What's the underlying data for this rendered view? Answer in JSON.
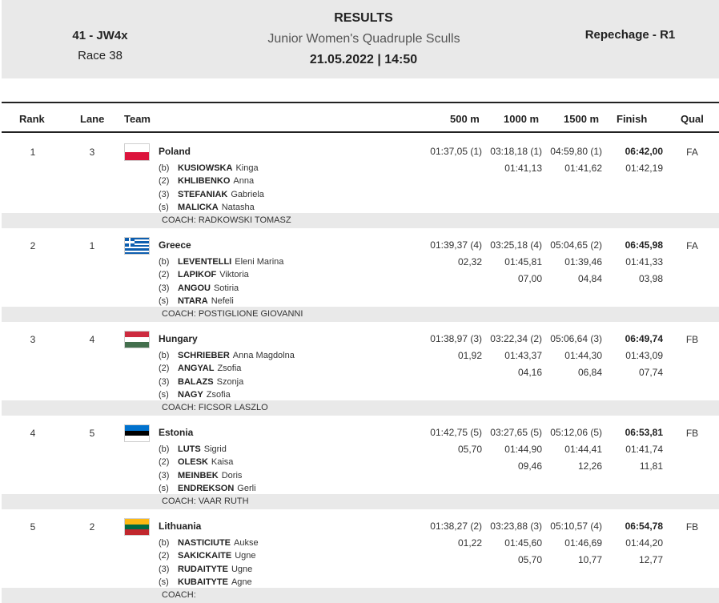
{
  "header": {
    "event_code": "41 - JW4x",
    "race": "Race 38",
    "results_label": "RESULTS",
    "boat_class": "Junior Women's Quadruple Sculls",
    "date_time": "21.05.2022 | 14:50",
    "round": "Repechage - R1"
  },
  "columns": {
    "rank": "Rank",
    "lane": "Lane",
    "team": "Team",
    "m500": "500 m",
    "m1000": "1000 m",
    "m1500": "1500 m",
    "finish": "Finish",
    "qual": "Qual"
  },
  "colors": {
    "header_bg": "#e9e9e9",
    "coach_band_bg": "#e9e9e9",
    "row_divider": "#9a9a9a"
  },
  "results": [
    {
      "rank": "1",
      "lane": "3",
      "country": "Poland",
      "flag": "poland-flag-icon",
      "crew": [
        {
          "seat": "(b)",
          "surname": "KUSIOWSKA",
          "first": "Kinga"
        },
        {
          "seat": "(2)",
          "surname": "KHLIBENKO",
          "first": "Anna"
        },
        {
          "seat": "(3)",
          "surname": "STEFANIAK",
          "first": "Gabriela"
        },
        {
          "seat": "(s)",
          "surname": "MALICKA",
          "first": "Natasha"
        }
      ],
      "coach": "COACH: RADKOWSKI TOMASZ",
      "m500": [
        "01:37,05 (1)",
        "",
        ""
      ],
      "m1000": [
        "03:18,18 (1)",
        "01:41,13",
        ""
      ],
      "m1500": [
        "04:59,80 (1)",
        "01:41,62",
        ""
      ],
      "finish": [
        "06:42,00",
        "01:42,19",
        ""
      ],
      "qual": "FA"
    },
    {
      "rank": "2",
      "lane": "1",
      "country": "Greece",
      "flag": "greece-flag-icon",
      "crew": [
        {
          "seat": "(b)",
          "surname": "LEVENTELLI",
          "first": "Eleni Marina"
        },
        {
          "seat": "(2)",
          "surname": "LAPIKOF",
          "first": "Viktoria"
        },
        {
          "seat": "(3)",
          "surname": "ANGOU",
          "first": "Sotiria"
        },
        {
          "seat": "(s)",
          "surname": "NTARA",
          "first": "Nefeli"
        }
      ],
      "coach": "COACH: POSTIGLIONE GIOVANNI",
      "m500": [
        "01:39,37 (4)",
        "02,32",
        ""
      ],
      "m1000": [
        "03:25,18 (4)",
        "01:45,81",
        "07,00"
      ],
      "m1500": [
        "05:04,65 (2)",
        "01:39,46",
        "04,84"
      ],
      "finish": [
        "06:45,98",
        "01:41,33",
        "03,98"
      ],
      "qual": "FA"
    },
    {
      "rank": "3",
      "lane": "4",
      "country": "Hungary",
      "flag": "hungary-flag-icon",
      "crew": [
        {
          "seat": "(b)",
          "surname": "SCHRIEBER",
          "first": "Anna Magdolna"
        },
        {
          "seat": "(2)",
          "surname": "ANGYAL",
          "first": "Zsofia"
        },
        {
          "seat": "(3)",
          "surname": "BALAZS",
          "first": "Szonja"
        },
        {
          "seat": "(s)",
          "surname": "NAGY",
          "first": "Zsofia"
        }
      ],
      "coach": "COACH: FICSOR LASZLO",
      "m500": [
        "01:38,97 (3)",
        "01,92",
        ""
      ],
      "m1000": [
        "03:22,34 (2)",
        "01:43,37",
        "04,16"
      ],
      "m1500": [
        "05:06,64 (3)",
        "01:44,30",
        "06,84"
      ],
      "finish": [
        "06:49,74",
        "01:43,09",
        "07,74"
      ],
      "qual": "FB"
    },
    {
      "rank": "4",
      "lane": "5",
      "country": "Estonia",
      "flag": "estonia-flag-icon",
      "crew": [
        {
          "seat": "(b)",
          "surname": "LUTS",
          "first": "Sigrid"
        },
        {
          "seat": "(2)",
          "surname": "OLESK",
          "first": "Kaisa"
        },
        {
          "seat": "(3)",
          "surname": "MEINBEK",
          "first": "Doris"
        },
        {
          "seat": "(s)",
          "surname": "ENDREKSON",
          "first": "Gerli"
        }
      ],
      "coach": "COACH: VAAR RUTH",
      "m500": [
        "01:42,75 (5)",
        "05,70",
        ""
      ],
      "m1000": [
        "03:27,65 (5)",
        "01:44,90",
        "09,46"
      ],
      "m1500": [
        "05:12,06 (5)",
        "01:44,41",
        "12,26"
      ],
      "finish": [
        "06:53,81",
        "01:41,74",
        "11,81"
      ],
      "qual": "FB"
    },
    {
      "rank": "5",
      "lane": "2",
      "country": "Lithuania",
      "flag": "lithuania-flag-icon",
      "crew": [
        {
          "seat": "(b)",
          "surname": "NASTICIUTE",
          "first": "Aukse"
        },
        {
          "seat": "(2)",
          "surname": "SAKICKAITE",
          "first": "Ugne"
        },
        {
          "seat": "(3)",
          "surname": "RUDAITYTE",
          "first": "Ugne"
        },
        {
          "seat": "(s)",
          "surname": "KUBAITYTE",
          "first": "Agne"
        }
      ],
      "coach": "COACH:",
      "m500": [
        "01:38,27 (2)",
        "01,22",
        ""
      ],
      "m1000": [
        "03:23,88 (3)",
        "01:45,60",
        "05,70"
      ],
      "m1500": [
        "05:10,57 (4)",
        "01:46,69",
        "10,77"
      ],
      "finish": [
        "06:54,78",
        "01:44,20",
        "12,77"
      ],
      "qual": "FB"
    }
  ]
}
